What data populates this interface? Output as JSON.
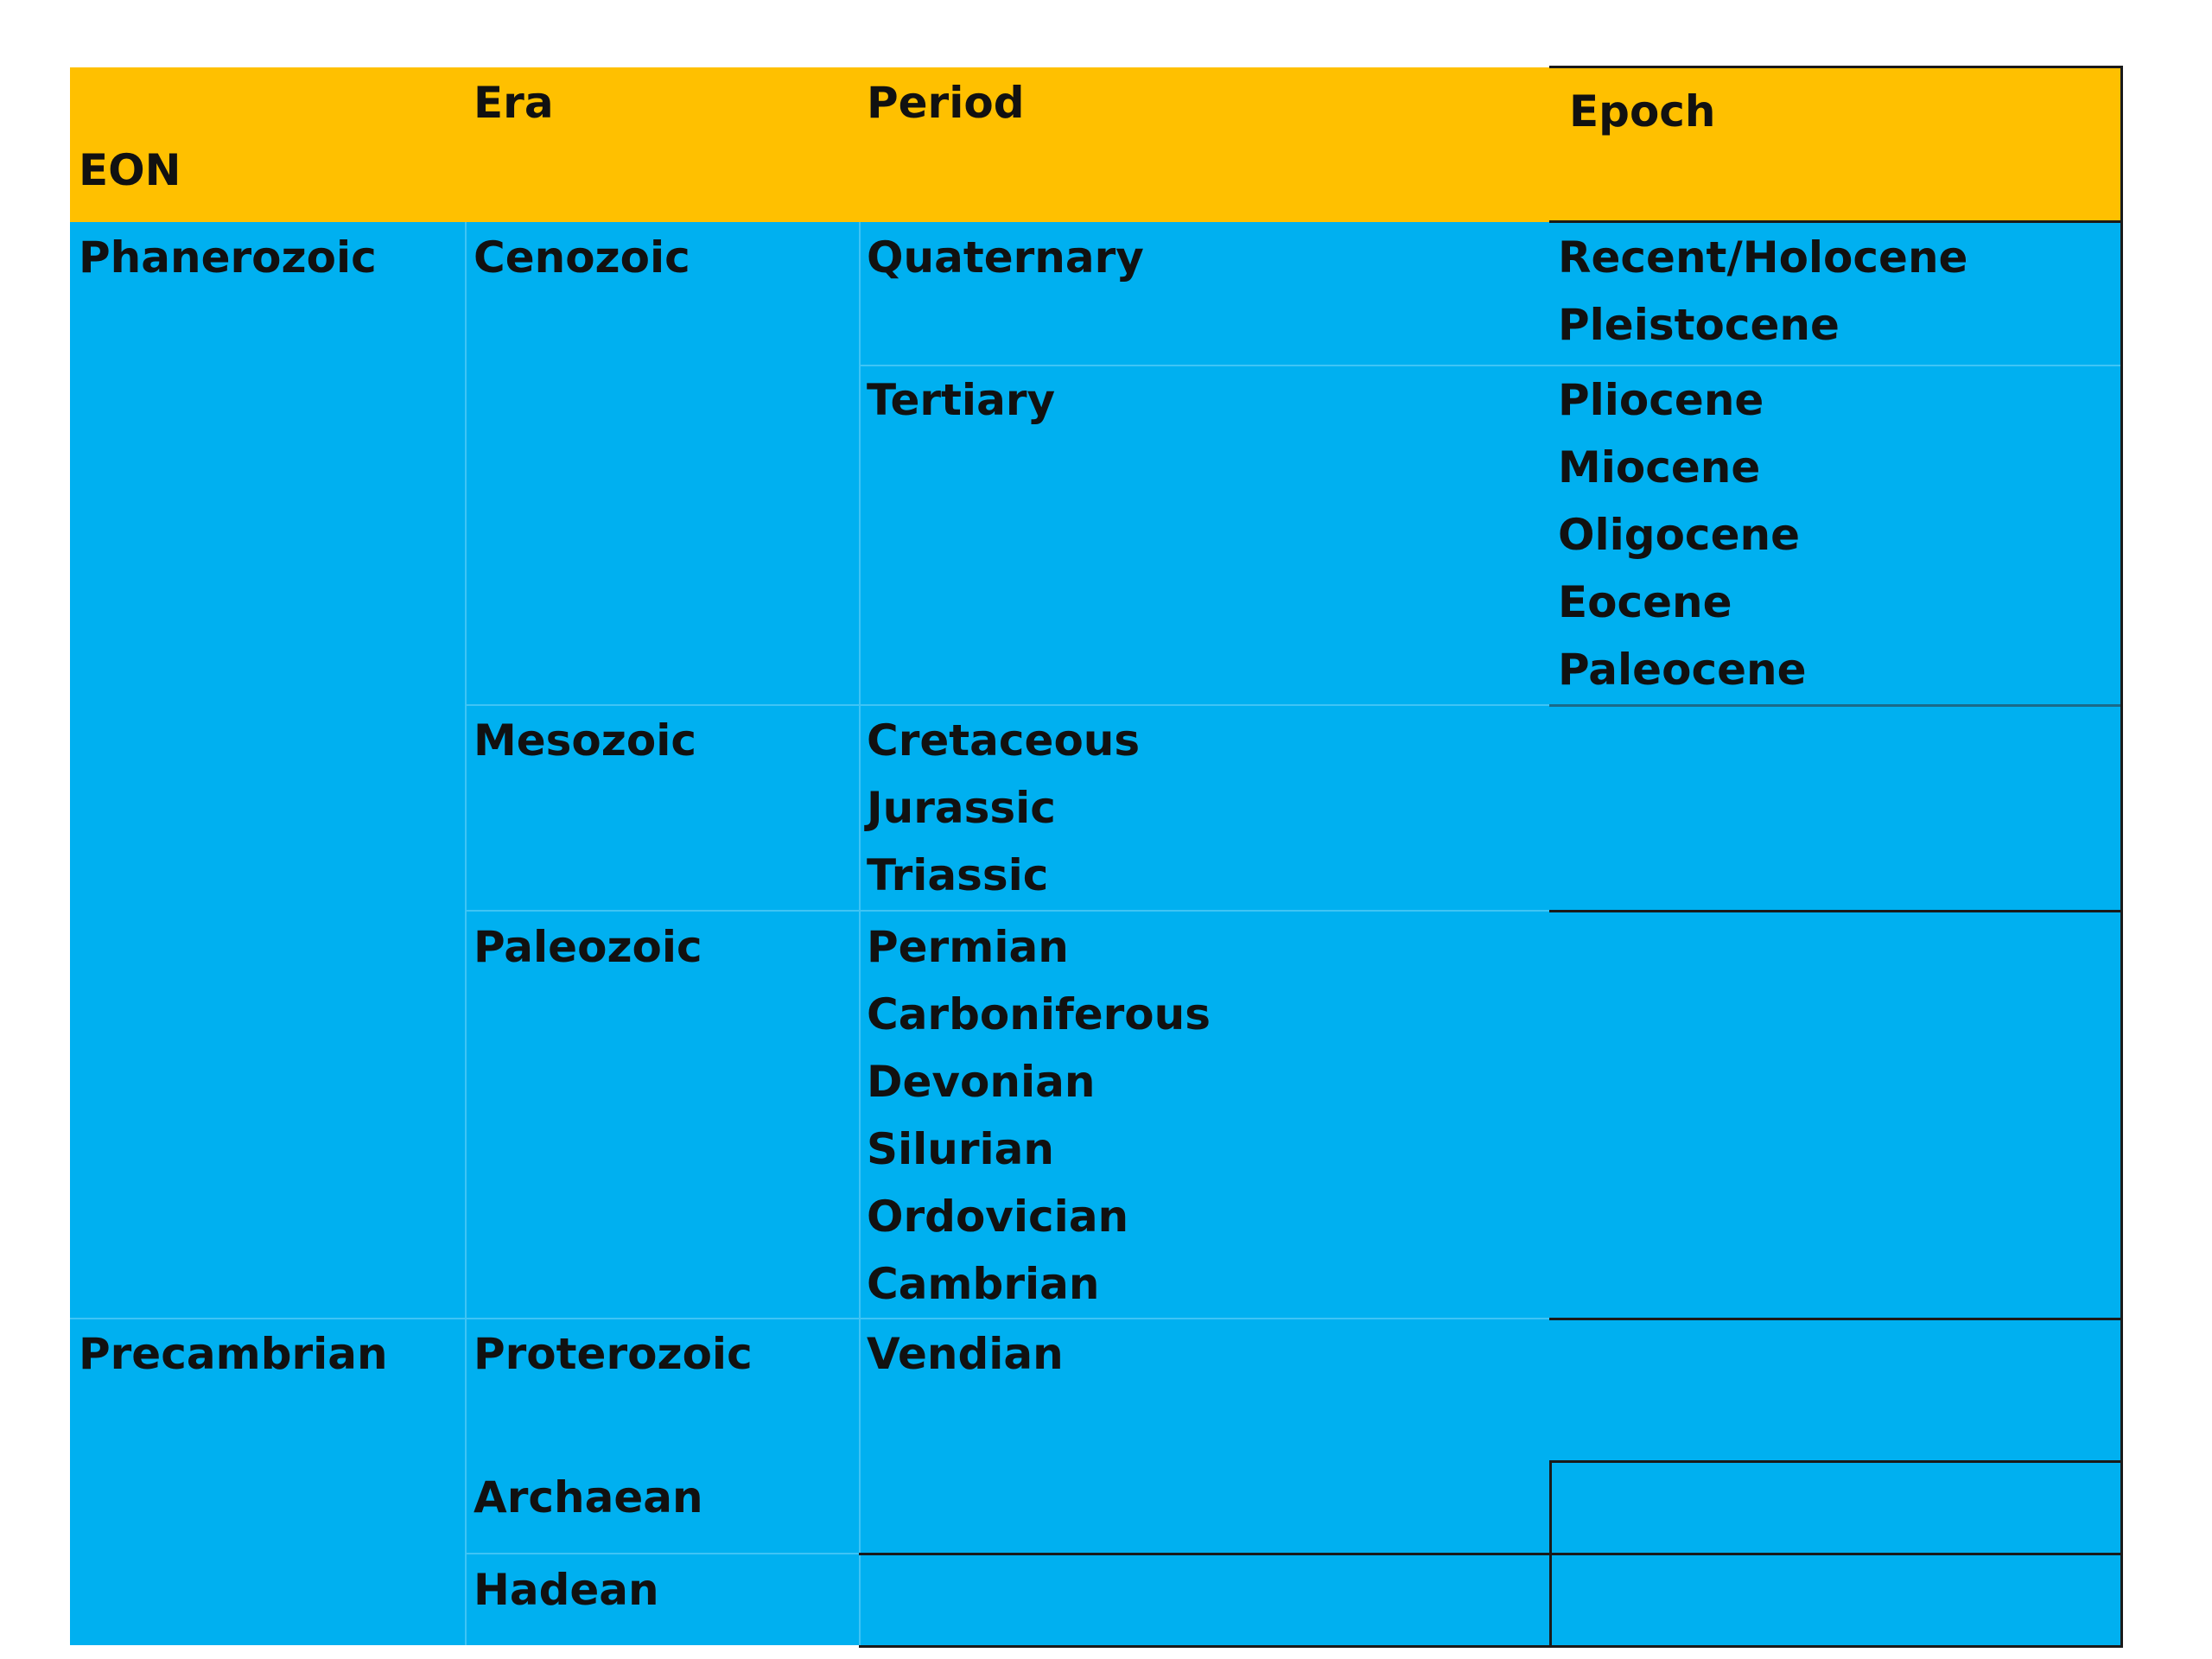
{
  "header": [
    "EON",
    "Era",
    "Period",
    "Epoch"
  ],
  "eons": [
    {
      "name": "Phanerozoic",
      "eras": [
        {
          "name": "Cenozoic",
          "periods": [
            {
              "name": "Quaternary",
              "epochs": [
                "Recent/Holocene",
                "Pleistocene"
              ]
            },
            {
              "name": "Tertiary",
              "epochs": [
                "Pliocene",
                "Miocene",
                "Oligocene",
                "Eocene",
                "Paleocene"
              ]
            }
          ]
        },
        {
          "name": "Mesozoic",
          "periods": [
            "Cretaceous",
            "Jurassic",
            "Triassic"
          ]
        },
        {
          "name": "Paleozoic",
          "periods": [
            "Permian",
            "Carboniferous",
            "Devonian",
            "Silurian",
            "Ordovician",
            "Cambrian"
          ]
        }
      ]
    },
    {
      "name": "Precambrian",
      "eras": [
        {
          "name": "Proterozoic",
          "periods": [
            "Vendian"
          ]
        },
        {
          "name": "Archaean"
        },
        {
          "name": "Hadean"
        }
      ]
    }
  ]
}
